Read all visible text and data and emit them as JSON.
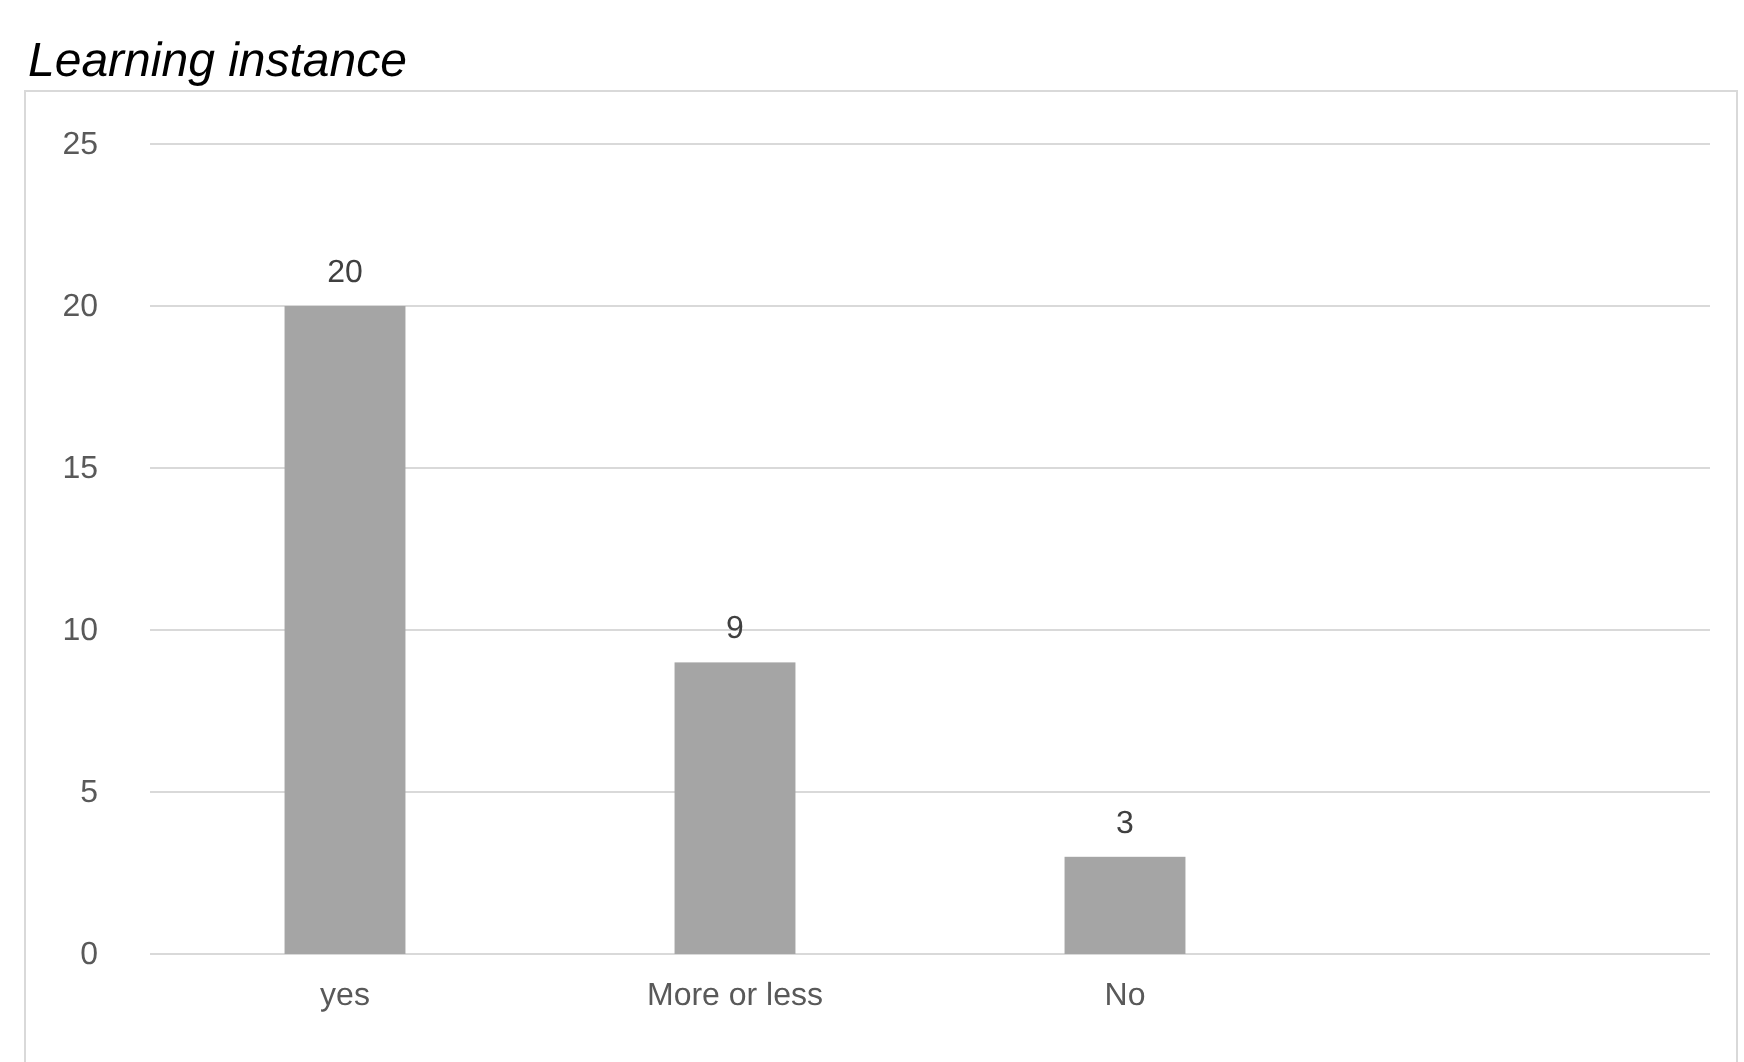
{
  "chart_data": {
    "type": "bar",
    "title": "Learning instance",
    "categories": [
      "yes",
      "More or less",
      "No",
      null
    ],
    "values": [
      20,
      9,
      3,
      null
    ],
    "color": "#a5a5a5",
    "ylim": [
      0,
      25
    ],
    "yticks": [
      0,
      5,
      10,
      15,
      20,
      25
    ],
    "grid": "y",
    "data_labels": true
  }
}
